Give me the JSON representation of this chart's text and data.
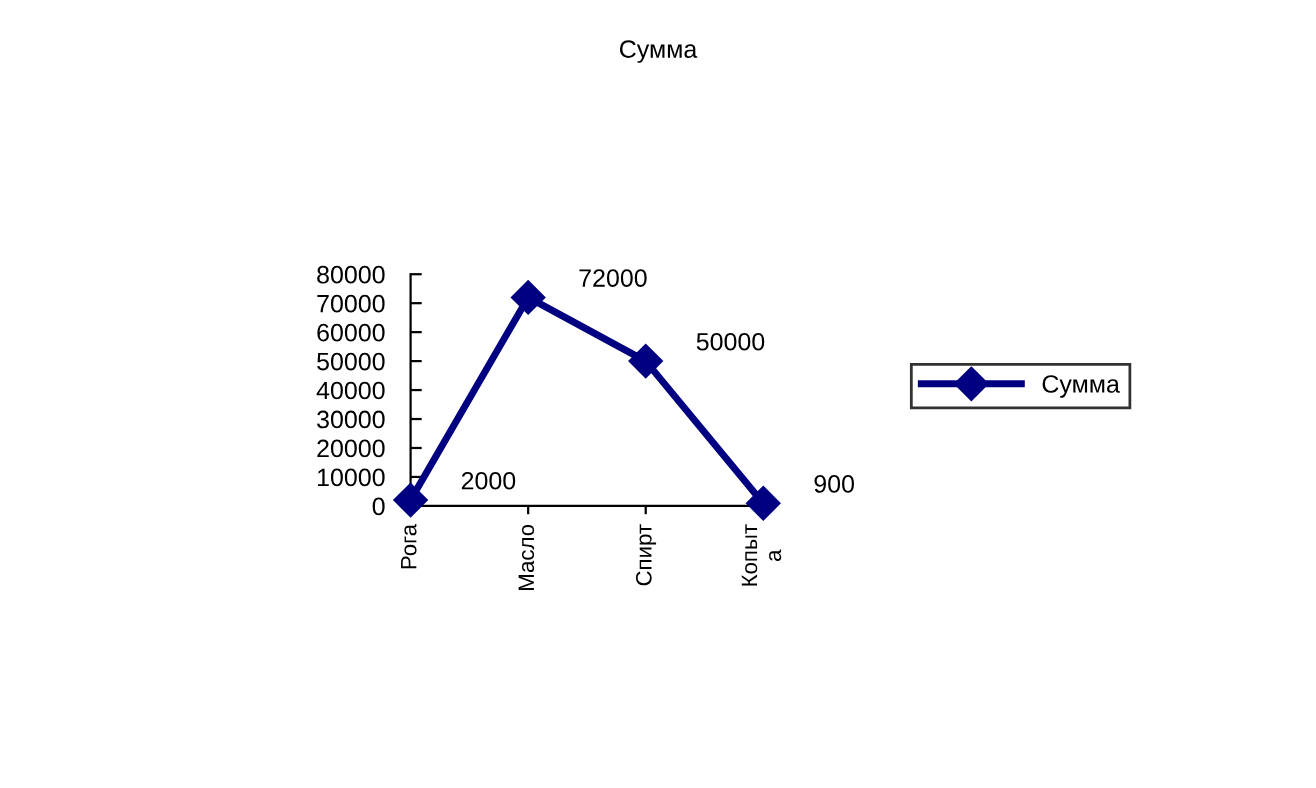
{
  "chart_data": {
    "type": "line",
    "title": "Сумма",
    "categories": [
      "Рога",
      "Масло",
      "Спирт",
      "Копыт\nа"
    ],
    "series": [
      {
        "name": "Сумма",
        "color": "#000080",
        "values": [
          2000,
          72000,
          50000,
          900
        ]
      }
    ],
    "ylim": [
      0,
      80000
    ],
    "yticks": [
      0,
      10000,
      20000,
      30000,
      40000,
      50000,
      60000,
      70000,
      80000
    ],
    "marker": "diamond",
    "line_style": "solid",
    "data_labels": true,
    "grid": false,
    "legend": "right"
  }
}
